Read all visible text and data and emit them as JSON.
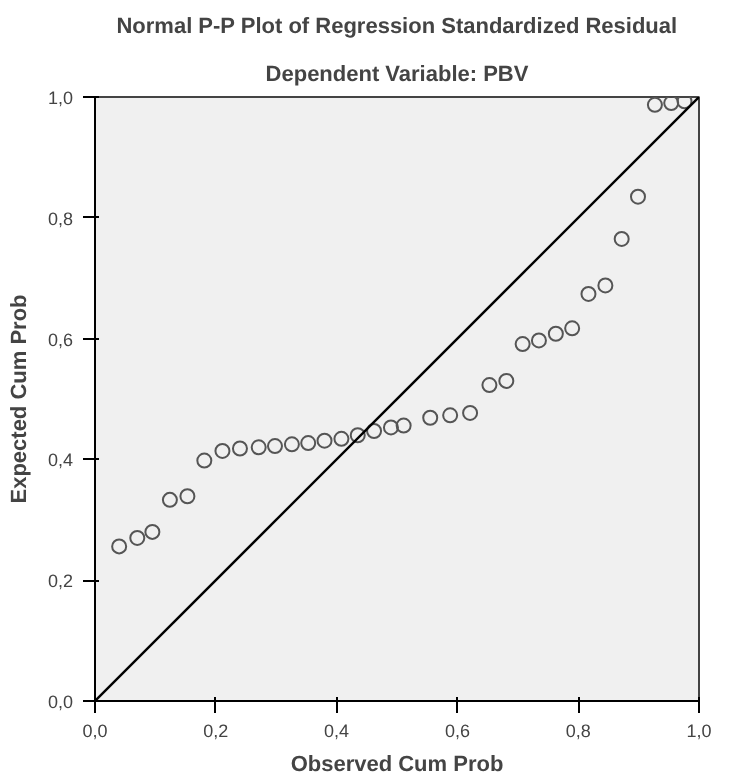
{
  "chart_data": {
    "type": "scatter",
    "title": "Normal P-P Plot of Regression Standardized Residual",
    "subtitle": "Dependent Variable: PBV",
    "xlabel": "Observed Cum Prob",
    "ylabel": "Expected Cum Prob",
    "xlim": [
      0,
      1
    ],
    "ylim": [
      0,
      1
    ],
    "xticks": [
      {
        "value": 0,
        "label": "0,0"
      },
      {
        "value": 0.2,
        "label": "0,2"
      },
      {
        "value": 0.4,
        "label": "0,4"
      },
      {
        "value": 0.6,
        "label": "0,6"
      },
      {
        "value": 0.8,
        "label": "0,8"
      },
      {
        "value": 1,
        "label": "1,0"
      }
    ],
    "yticks": [
      {
        "value": 0,
        "label": "0,0"
      },
      {
        "value": 0.2,
        "label": "0,2"
      },
      {
        "value": 0.4,
        "label": "0,4"
      },
      {
        "value": 0.6,
        "label": "0,6"
      },
      {
        "value": 0.8,
        "label": "0,8"
      },
      {
        "value": 1,
        "label": "1,0"
      }
    ],
    "grid": false,
    "series": [
      {
        "marker": "circle",
        "color": "#555555",
        "x": [
          0.04,
          0.07,
          0.095,
          0.124,
          0.153,
          0.181,
          0.211,
          0.24,
          0.271,
          0.298,
          0.326,
          0.353,
          0.38,
          0.408,
          0.435,
          0.462,
          0.49,
          0.511,
          0.555,
          0.588,
          0.621,
          0.653,
          0.681,
          0.708,
          0.735,
          0.763,
          0.79,
          0.817,
          0.845,
          0.872,
          0.899,
          0.927,
          0.954,
          0.976
        ],
        "values": [
          0.256,
          0.27,
          0.28,
          0.333,
          0.339,
          0.398,
          0.414,
          0.418,
          0.42,
          0.422,
          0.425,
          0.427,
          0.431,
          0.434,
          0.44,
          0.447,
          0.453,
          0.456,
          0.469,
          0.473,
          0.477,
          0.523,
          0.53,
          0.591,
          0.597,
          0.608,
          0.617,
          0.674,
          0.688,
          0.765,
          0.835,
          0.987,
          0.99,
          0.993
        ]
      },
      {
        "type": "line",
        "marker": "none",
        "color": "#000000",
        "x": [
          0,
          1
        ],
        "values": [
          0,
          1
        ]
      }
    ]
  }
}
